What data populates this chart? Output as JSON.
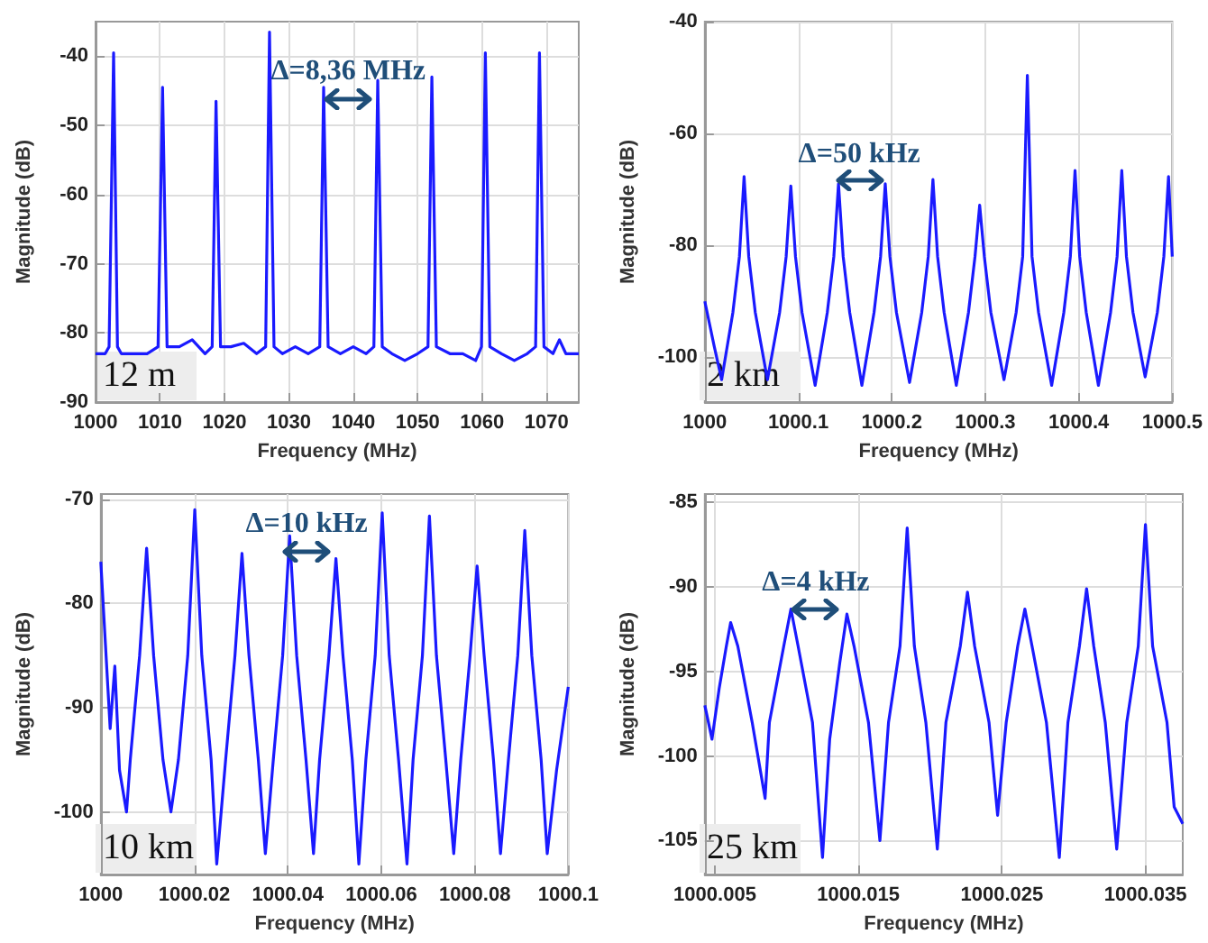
{
  "chart_data": [
    {
      "type": "line",
      "xlabel": "Frequency (MHz)",
      "ylabel": "Magnitude (dB)",
      "xlim": [
        1000,
        1075
      ],
      "xticks": [
        1000,
        1010,
        1020,
        1030,
        1040,
        1050,
        1060,
        1070
      ],
      "ylim": [
        -90,
        -35
      ],
      "yticks": [
        -90,
        -80,
        -70,
        -60,
        -50,
        -40
      ],
      "grid": true,
      "series": [
        {
          "color": "#1a1aff",
          "x": [
            1000,
            1001.5,
            1002.1,
            1002.8,
            1003.4,
            1004,
            1006,
            1008,
            1009.7,
            1010.4,
            1011.1,
            1013,
            1015,
            1017,
            1018.1,
            1018.7,
            1019.4,
            1021,
            1023,
            1025,
            1026.4,
            1027,
            1027.7,
            1029,
            1031,
            1033,
            1034.8,
            1035.4,
            1036.1,
            1038,
            1040,
            1042,
            1043.2,
            1043.8,
            1044.5,
            1046,
            1048,
            1050,
            1051.6,
            1052.2,
            1052.9,
            1055,
            1057,
            1059,
            1059.9,
            1060.5,
            1061.2,
            1063,
            1065,
            1067,
            1068.3,
            1068.9,
            1069.6,
            1071,
            1072,
            1073,
            1075
          ],
          "values": [
            -83,
            -83,
            -82,
            -39.5,
            -82,
            -83,
            -83,
            -83,
            -82,
            -44.5,
            -82,
            -82,
            -81,
            -83,
            -82,
            -46.5,
            -82,
            -82,
            -81.5,
            -83,
            -82,
            -36.5,
            -82,
            -83,
            -82,
            -83,
            -82,
            -44.5,
            -82,
            -83,
            -82,
            -83,
            -82,
            -43.5,
            -82,
            -83,
            -84,
            -83,
            -82,
            -43,
            -82,
            -83,
            -83,
            -84,
            -82,
            -39.5,
            -82,
            -83,
            -84,
            -83,
            -82,
            -39.5,
            -82,
            -83,
            -81,
            -83,
            -83
          ]
        }
      ],
      "annotations": [
        "12 m",
        "Δ=8,36 MHz"
      ]
    },
    {
      "type": "line",
      "xlabel": "Frequency (MHz)",
      "ylabel": "Magnitude (dB)",
      "xlim": [
        1000,
        1000.5
      ],
      "xticks": [
        1000,
        1000.1,
        1000.2,
        1000.3,
        1000.4,
        1000.5
      ],
      "ylim": [
        -108,
        -40
      ],
      "yticks": [
        -100,
        -80,
        -60,
        -40
      ],
      "grid": true,
      "series": [
        {
          "color": "#1a1aff",
          "x": [
            1000,
            1000.01,
            1000.018,
            1000.03,
            1000.037,
            1000.042,
            1000.047,
            1000.054,
            1000.067,
            1000.08,
            1000.087,
            1000.092,
            1000.097,
            1000.104,
            1000.118,
            1000.131,
            1000.138,
            1000.143,
            1000.148,
            1000.155,
            1000.168,
            1000.181,
            1000.188,
            1000.193,
            1000.198,
            1000.205,
            1000.219,
            1000.232,
            1000.239,
            1000.244,
            1000.249,
            1000.256,
            1000.269,
            1000.282,
            1000.289,
            1000.294,
            1000.299,
            1000.306,
            1000.32,
            1000.333,
            1000.34,
            1000.345,
            1000.35,
            1000.357,
            1000.371,
            1000.384,
            1000.391,
            1000.396,
            1000.401,
            1000.408,
            1000.421,
            1000.434,
            1000.441,
            1000.446,
            1000.451,
            1000.458,
            1000.471,
            1000.484,
            1000.491,
            1000.496,
            1000.5
          ],
          "values": [
            -90,
            -98,
            -104,
            -92,
            -82,
            -67.7,
            -82,
            -92,
            -104,
            -92,
            -82,
            -69.4,
            -82,
            -92,
            -105,
            -92,
            -82,
            -69,
            -82,
            -92,
            -105,
            -92,
            -82,
            -69,
            -82,
            -92,
            -104.5,
            -92,
            -82,
            -68.2,
            -82,
            -92,
            -105,
            -92,
            -82,
            -72.8,
            -82,
            -92,
            -104,
            -92,
            -82,
            -49.6,
            -82,
            -92,
            -105,
            -92,
            -82,
            -66.6,
            -82,
            -92,
            -105,
            -92,
            -82,
            -66.6,
            -82,
            -92,
            -103.5,
            -92,
            -82,
            -67.7,
            -82
          ]
        }
      ],
      "annotations": [
        "2 km",
        "Δ=50 kHz"
      ]
    },
    {
      "type": "line",
      "xlabel": "Frequency (MHz)",
      "ylabel": "Magnitude (dB)",
      "xlim": [
        1000,
        1000.1
      ],
      "xticks": [
        1000,
        1000.02,
        1000.04,
        1000.06,
        1000.08,
        1000.1
      ],
      "ylim": [
        -106,
        -69.5
      ],
      "yticks": [
        -100,
        -90,
        -80,
        -70
      ],
      "grid": true,
      "series": [
        {
          "color": "#1a1aff",
          "x": [
            1000,
            1000.001,
            1000.002,
            1000.003,
            1000.004,
            1000.0055,
            1000.0063,
            1000.0083,
            1000.0098,
            1000.0113,
            1000.0133,
            1000.015,
            1000.0166,
            1000.0186,
            1000.0201,
            1000.0216,
            1000.0236,
            1000.0248,
            1000.0267,
            1000.0287,
            1000.0302,
            1000.0317,
            1000.0337,
            1000.0352,
            1000.0369,
            1000.0389,
            1000.0404,
            1000.0419,
            1000.0439,
            1000.0455,
            1000.0468,
            1000.0488,
            1000.0503,
            1000.0518,
            1000.0538,
            1000.0552,
            1000.0567,
            1000.0587,
            1000.0602,
            1000.0617,
            1000.0637,
            1000.0655,
            1000.0668,
            1000.0688,
            1000.0703,
            1000.0718,
            1000.0738,
            1000.0755,
            1000.077,
            1000.079,
            1000.0805,
            1000.082,
            1000.084,
            1000.0855,
            1000.0872,
            1000.0892,
            1000.0907,
            1000.0922,
            1000.0942,
            1000.0955,
            1000.0975,
            1000.1
          ],
          "values": [
            -76,
            -84,
            -92,
            -86,
            -96,
            -100,
            -95,
            -85,
            -74.7,
            -85,
            -95,
            -100,
            -95,
            -85,
            -71,
            -85,
            -95,
            -105,
            -95,
            -85,
            -75.2,
            -85,
            -95,
            -104,
            -95,
            -85,
            -73.5,
            -85,
            -95,
            -104,
            -95,
            -85,
            -75.7,
            -85,
            -95,
            -105,
            -95,
            -85,
            -71.3,
            -85,
            -95,
            -105,
            -95,
            -85,
            -71.6,
            -85,
            -95,
            -104,
            -95,
            -85,
            -76.4,
            -85,
            -95,
            -104,
            -95,
            -85,
            -73,
            -85,
            -95,
            -104,
            -96,
            -88
          ]
        }
      ],
      "annotations": [
        "10 km",
        "Δ=10 kHz"
      ]
    },
    {
      "type": "line",
      "xlabel": "Frequency (MHz)",
      "ylabel": "Magnitude (dB)",
      "xlim": [
        1000.0043,
        1000.0376
      ],
      "xticks": [
        1000.005,
        1000.015,
        1000.025,
        1000.035
      ],
      "ylim": [
        -107,
        -84.5
      ],
      "yticks": [
        -105,
        -100,
        -95,
        -90,
        -85
      ],
      "grid": true,
      "series": [
        {
          "color": "#1a1aff",
          "x": [
            1000.0043,
            1000.0048,
            1000.0053,
            1000.0058,
            1000.0061,
            1000.0066,
            1000.0076,
            1000.0085,
            1000.0088,
            1000.0098,
            1000.0103,
            1000.0108,
            1000.0118,
            1000.0125,
            1000.013,
            1000.0137,
            1000.0142,
            1000.0147,
            1000.0157,
            1000.0165,
            1000.0171,
            1000.0179,
            1000.0184,
            1000.0189,
            1000.0197,
            1000.0205,
            1000.0211,
            1000.0221,
            1000.0226,
            1000.0231,
            1000.0241,
            1000.0247,
            1000.0253,
            1000.0261,
            1000.0266,
            1000.0271,
            1000.0281,
            1000.029,
            1000.0296,
            1000.0304,
            1000.0309,
            1000.0314,
            1000.0322,
            1000.033,
            1000.0337,
            1000.0345,
            1000.035,
            1000.0355,
            1000.0365,
            1000.037,
            1000.0376
          ],
          "values": [
            -97,
            -99,
            -96,
            -93.5,
            -92.1,
            -93.5,
            -98,
            -102.5,
            -98,
            -93.5,
            -91.3,
            -93.5,
            -98,
            -106,
            -99,
            -94.5,
            -91.6,
            -93.5,
            -98,
            -105,
            -98,
            -93.5,
            -86.5,
            -93.5,
            -98,
            -105.5,
            -98,
            -93.5,
            -90.3,
            -93.5,
            -98,
            -103.5,
            -98,
            -93.5,
            -91.3,
            -93.5,
            -98,
            -106,
            -98,
            -93.5,
            -90.1,
            -93.5,
            -98,
            -105.5,
            -98,
            -93.5,
            -86.3,
            -93.5,
            -98,
            -103,
            -104
          ]
        }
      ],
      "annotations": [
        "25 km",
        "Δ=4 kHz"
      ]
    }
  ]
}
